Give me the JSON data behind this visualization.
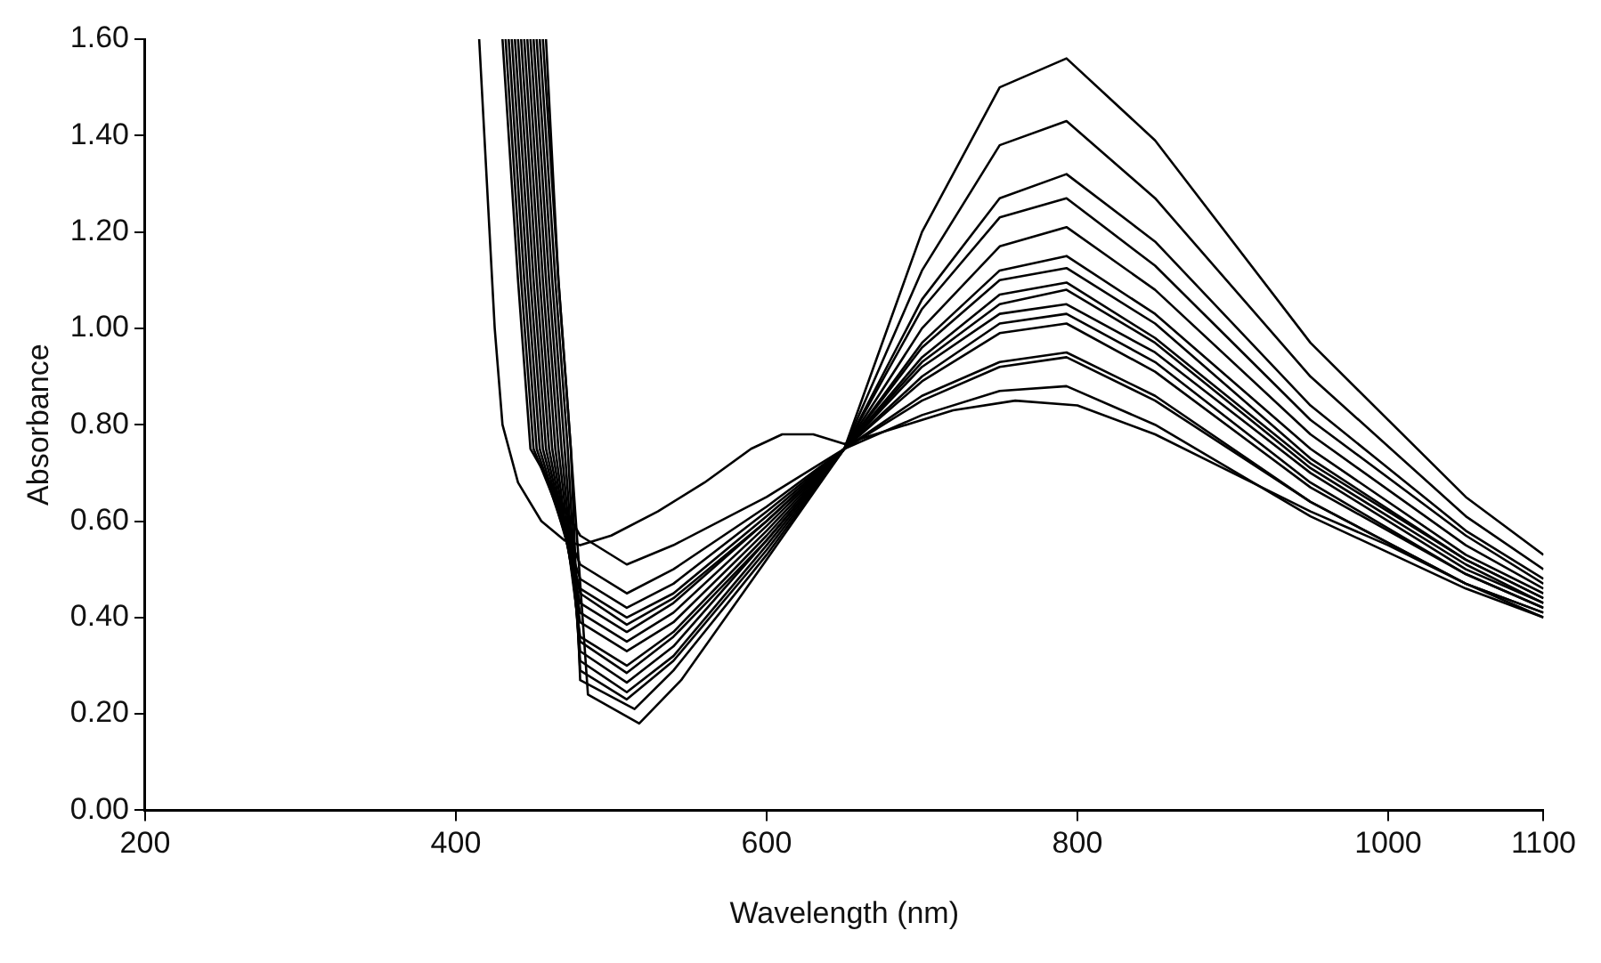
{
  "chart_data": {
    "type": "line",
    "xlabel": "Wavelength (nm)",
    "ylabel": "Absorbance",
    "xlim": [
      200,
      1100
    ],
    "xticks": [
      200,
      400,
      600,
      800,
      1000,
      1100
    ],
    "ylim": [
      0,
      1.6
    ],
    "yticks": [
      {
        "value": 0,
        "label": "0.00"
      },
      {
        "value": 0.2,
        "label": "0.20"
      },
      {
        "value": 0.4,
        "label": "0.40"
      },
      {
        "value": 0.6,
        "label": "0.60"
      },
      {
        "value": 0.8,
        "label": "0.80"
      },
      {
        "value": 1.0,
        "label": "1.00"
      },
      {
        "value": 1.2,
        "label": "1.20"
      },
      {
        "value": 1.4,
        "label": "1.40"
      },
      {
        "value": 1.6,
        "label": "1.60"
      }
    ],
    "grid": false,
    "legend": false,
    "marker": "none",
    "line_style": "solid",
    "series": [
      {
        "color": "#000000",
        "x": [
          415,
          420,
          425,
          430,
          440,
          455,
          470,
          480,
          500,
          530,
          560,
          590,
          610,
          630,
          650,
          680,
          720,
          760,
          800,
          850,
          900,
          950,
          1000,
          1050,
          1100
        ],
        "values": [
          1.6,
          1.3,
          1.0,
          0.8,
          0.68,
          0.6,
          0.56,
          0.55,
          0.57,
          0.62,
          0.68,
          0.75,
          0.78,
          0.78,
          0.76,
          0.79,
          0.83,
          0.85,
          0.84,
          0.78,
          0.7,
          0.62,
          0.55,
          0.47,
          0.4
        ]
      },
      {
        "color": "#000000",
        "x": [
          430,
          440,
          448,
          480,
          510,
          540,
          600,
          650,
          700,
          750,
          793,
          850,
          950,
          1050,
          1100
        ],
        "values": [
          1.6,
          1.1,
          0.75,
          0.57,
          0.51,
          0.55,
          0.65,
          0.75,
          0.82,
          0.87,
          0.88,
          0.8,
          0.61,
          0.46,
          0.4
        ]
      },
      {
        "color": "#000000",
        "x": [
          432,
          442,
          450,
          480,
          510,
          540,
          600,
          650,
          700,
          750,
          793,
          850,
          950,
          1050,
          1100
        ],
        "values": [
          1.6,
          1.1,
          0.75,
          0.51,
          0.45,
          0.5,
          0.63,
          0.75,
          0.85,
          0.92,
          0.94,
          0.85,
          0.64,
          0.47,
          0.41
        ]
      },
      {
        "color": "#000000",
        "x": [
          434,
          444,
          452,
          480,
          510,
          540,
          600,
          650,
          700,
          750,
          793,
          850,
          950,
          1050,
          1100
        ],
        "values": [
          1.6,
          1.1,
          0.75,
          0.48,
          0.42,
          0.47,
          0.62,
          0.75,
          0.86,
          0.93,
          0.95,
          0.86,
          0.64,
          0.47,
          0.41
        ]
      },
      {
        "color": "#000000",
        "x": [
          436,
          446,
          454,
          480,
          510,
          540,
          600,
          650,
          700,
          750,
          793,
          850,
          950,
          1050,
          1100
        ],
        "values": [
          1.6,
          1.1,
          0.75,
          0.46,
          0.4,
          0.45,
          0.61,
          0.75,
          0.89,
          0.99,
          1.01,
          0.91,
          0.67,
          0.49,
          0.42
        ]
      },
      {
        "color": "#000000",
        "x": [
          438,
          448,
          456,
          480,
          510,
          540,
          600,
          650,
          700,
          750,
          793,
          850,
          950,
          1050,
          1100
        ],
        "values": [
          1.6,
          1.1,
          0.75,
          0.45,
          0.385,
          0.44,
          0.6,
          0.75,
          0.9,
          1.01,
          1.03,
          0.93,
          0.68,
          0.49,
          0.42
        ]
      },
      {
        "color": "#000000",
        "x": [
          440,
          450,
          458,
          480,
          510,
          540,
          600,
          650,
          700,
          750,
          793,
          850,
          950,
          1050,
          1100
        ],
        "values": [
          1.6,
          1.1,
          0.75,
          0.43,
          0.37,
          0.43,
          0.6,
          0.75,
          0.92,
          1.03,
          1.05,
          0.95,
          0.7,
          0.5,
          0.43
        ]
      },
      {
        "color": "#000000",
        "x": [
          442,
          452,
          460,
          480,
          510,
          540,
          600,
          650,
          700,
          750,
          793,
          850,
          950,
          1050,
          1100
        ],
        "values": [
          1.6,
          1.1,
          0.75,
          0.41,
          0.35,
          0.41,
          0.59,
          0.75,
          0.93,
          1.05,
          1.08,
          0.97,
          0.71,
          0.51,
          0.43
        ]
      },
      {
        "color": "#000000",
        "x": [
          444,
          454,
          462,
          480,
          510,
          540,
          600,
          650,
          700,
          750,
          793,
          850,
          950,
          1050,
          1100
        ],
        "values": [
          1.6,
          1.1,
          0.75,
          0.39,
          0.33,
          0.39,
          0.58,
          0.75,
          0.94,
          1.07,
          1.095,
          0.98,
          0.72,
          0.52,
          0.44
        ]
      },
      {
        "color": "#000000",
        "x": [
          446,
          456,
          464,
          480,
          510,
          540,
          600,
          650,
          700,
          750,
          793,
          850,
          950,
          1050,
          1100
        ],
        "values": [
          1.6,
          1.1,
          0.75,
          0.36,
          0.3,
          0.37,
          0.57,
          0.75,
          0.96,
          1.1,
          1.125,
          1.01,
          0.73,
          0.52,
          0.44
        ]
      },
      {
        "color": "#000000",
        "x": [
          448,
          458,
          466,
          480,
          510,
          540,
          600,
          650,
          700,
          750,
          793,
          850,
          950,
          1050,
          1100
        ],
        "values": [
          1.6,
          1.1,
          0.75,
          0.35,
          0.285,
          0.36,
          0.56,
          0.75,
          0.97,
          1.12,
          1.15,
          1.03,
          0.75,
          0.53,
          0.45
        ]
      },
      {
        "color": "#000000",
        "x": [
          450,
          460,
          468,
          480,
          510,
          540,
          600,
          650,
          700,
          750,
          793,
          850,
          950,
          1050,
          1100
        ],
        "values": [
          1.6,
          1.1,
          0.75,
          0.33,
          0.265,
          0.34,
          0.56,
          0.75,
          1.0,
          1.17,
          1.21,
          1.08,
          0.78,
          0.55,
          0.46
        ]
      },
      {
        "color": "#000000",
        "x": [
          452,
          462,
          470,
          480,
          510,
          540,
          600,
          650,
          700,
          750,
          793,
          850,
          950,
          1050,
          1100
        ],
        "values": [
          1.6,
          1.1,
          0.75,
          0.31,
          0.245,
          0.32,
          0.55,
          0.75,
          1.04,
          1.23,
          1.27,
          1.13,
          0.81,
          0.57,
          0.47
        ]
      },
      {
        "color": "#000000",
        "x": [
          454,
          464,
          472,
          480,
          510,
          540,
          600,
          650,
          700,
          750,
          793,
          850,
          950,
          1050,
          1100
        ],
        "values": [
          1.6,
          1.1,
          0.75,
          0.29,
          0.23,
          0.31,
          0.54,
          0.75,
          1.06,
          1.27,
          1.32,
          1.18,
          0.84,
          0.58,
          0.48
        ]
      },
      {
        "color": "#000000",
        "x": [
          456,
          466,
          474,
          480,
          515,
          540,
          600,
          650,
          700,
          750,
          793,
          850,
          950,
          1050,
          1100
        ],
        "values": [
          1.6,
          1.1,
          0.75,
          0.27,
          0.21,
          0.29,
          0.53,
          0.75,
          1.12,
          1.38,
          1.43,
          1.27,
          0.9,
          0.61,
          0.5
        ]
      },
      {
        "color": "#000000",
        "x": [
          458,
          466,
          474,
          485,
          518,
          545,
          600,
          650,
          700,
          750,
          793,
          850,
          950,
          1050,
          1100
        ],
        "values": [
          1.6,
          1.1,
          0.75,
          0.24,
          0.18,
          0.27,
          0.52,
          0.75,
          1.2,
          1.5,
          1.56,
          1.39,
          0.97,
          0.65,
          0.53
        ]
      }
    ]
  }
}
